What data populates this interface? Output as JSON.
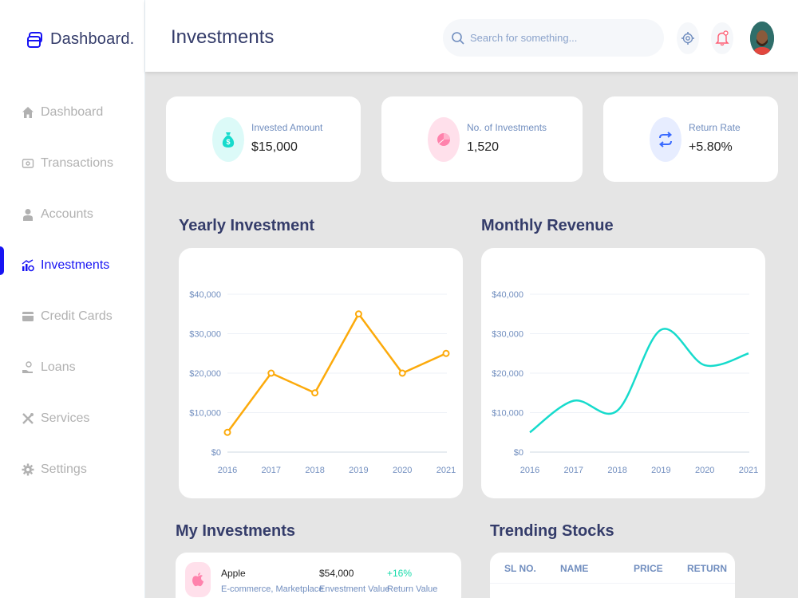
{
  "brand": {
    "name": "Dashboard.",
    "accent": "#1814f3"
  },
  "sidebar": {
    "items": [
      {
        "label": "Dashboard",
        "icon": "home-icon"
      },
      {
        "label": "Transactions",
        "icon": "transfer-icon"
      },
      {
        "label": "Accounts",
        "icon": "user-icon"
      },
      {
        "label": "Investments",
        "icon": "investment-icon",
        "active": true
      },
      {
        "label": "Credit Cards",
        "icon": "credit-card-icon"
      },
      {
        "label": "Loans",
        "icon": "loan-icon"
      },
      {
        "label": "Services",
        "icon": "tools-icon"
      },
      {
        "label": "Settings",
        "icon": "gear-icon"
      }
    ]
  },
  "header": {
    "title": "Investments",
    "search_placeholder": "Search for something...",
    "icons": [
      "search-icon",
      "gear-icon",
      "bell-icon",
      "avatar"
    ]
  },
  "stats": [
    {
      "label": "Invested Amount",
      "value": "$15,000",
      "icon": "money-bag-icon",
      "color": "#16dbcc",
      "bg": "#dcfaf8"
    },
    {
      "label": "No. of Investments",
      "value": "1,520",
      "icon": "pie-icon",
      "color": "#ff82ac",
      "bg": "#ffe0eb"
    },
    {
      "label": "Return Rate",
      "value": "+5.80%",
      "icon": "repeat-icon",
      "color": "#396aff",
      "bg": "#e7edff"
    }
  ],
  "sections": {
    "yearly": "Yearly Investment",
    "monthly": "Monthly Revenue",
    "my_investments": "My Investments",
    "trending": "Trending Stocks"
  },
  "chart_data": [
    {
      "type": "line",
      "title": "Yearly Investment",
      "x": [
        "2016",
        "2017",
        "2018",
        "2019",
        "2020",
        "2021"
      ],
      "y_ticks": [
        "$0",
        "$10,000",
        "$20,000",
        "$30,000",
        "$40,000"
      ],
      "ylim": [
        0,
        40000
      ],
      "series": [
        {
          "values": [
            5000,
            20000,
            15000,
            35000,
            20000,
            25000
          ],
          "color": "#fcaa0b"
        }
      ],
      "grid": true
    },
    {
      "type": "line",
      "title": "Monthly Revenue",
      "x": [
        "2016",
        "2017",
        "2018",
        "2019",
        "2020",
        "2021"
      ],
      "y_ticks": [
        "$0",
        "$10,000",
        "$20,000",
        "$30,000",
        "$40,000"
      ],
      "ylim": [
        0,
        40000
      ],
      "series": [
        {
          "values": [
            5000,
            13000,
            10500,
            31000,
            22000,
            25000
          ],
          "color": "#16dbcc",
          "smooth": true
        }
      ],
      "grid": true
    }
  ],
  "my_investments": [
    {
      "name": "Apple",
      "category": "E-commerce, Marketplace",
      "value": "$54,000",
      "value_label": "Envestment Value",
      "return": "+16%",
      "return_label": "Return Value",
      "icon": "apple-icon"
    }
  ],
  "trending": {
    "headers": [
      "SL NO.",
      "NAME",
      "PRICE",
      "RETURN"
    ]
  }
}
